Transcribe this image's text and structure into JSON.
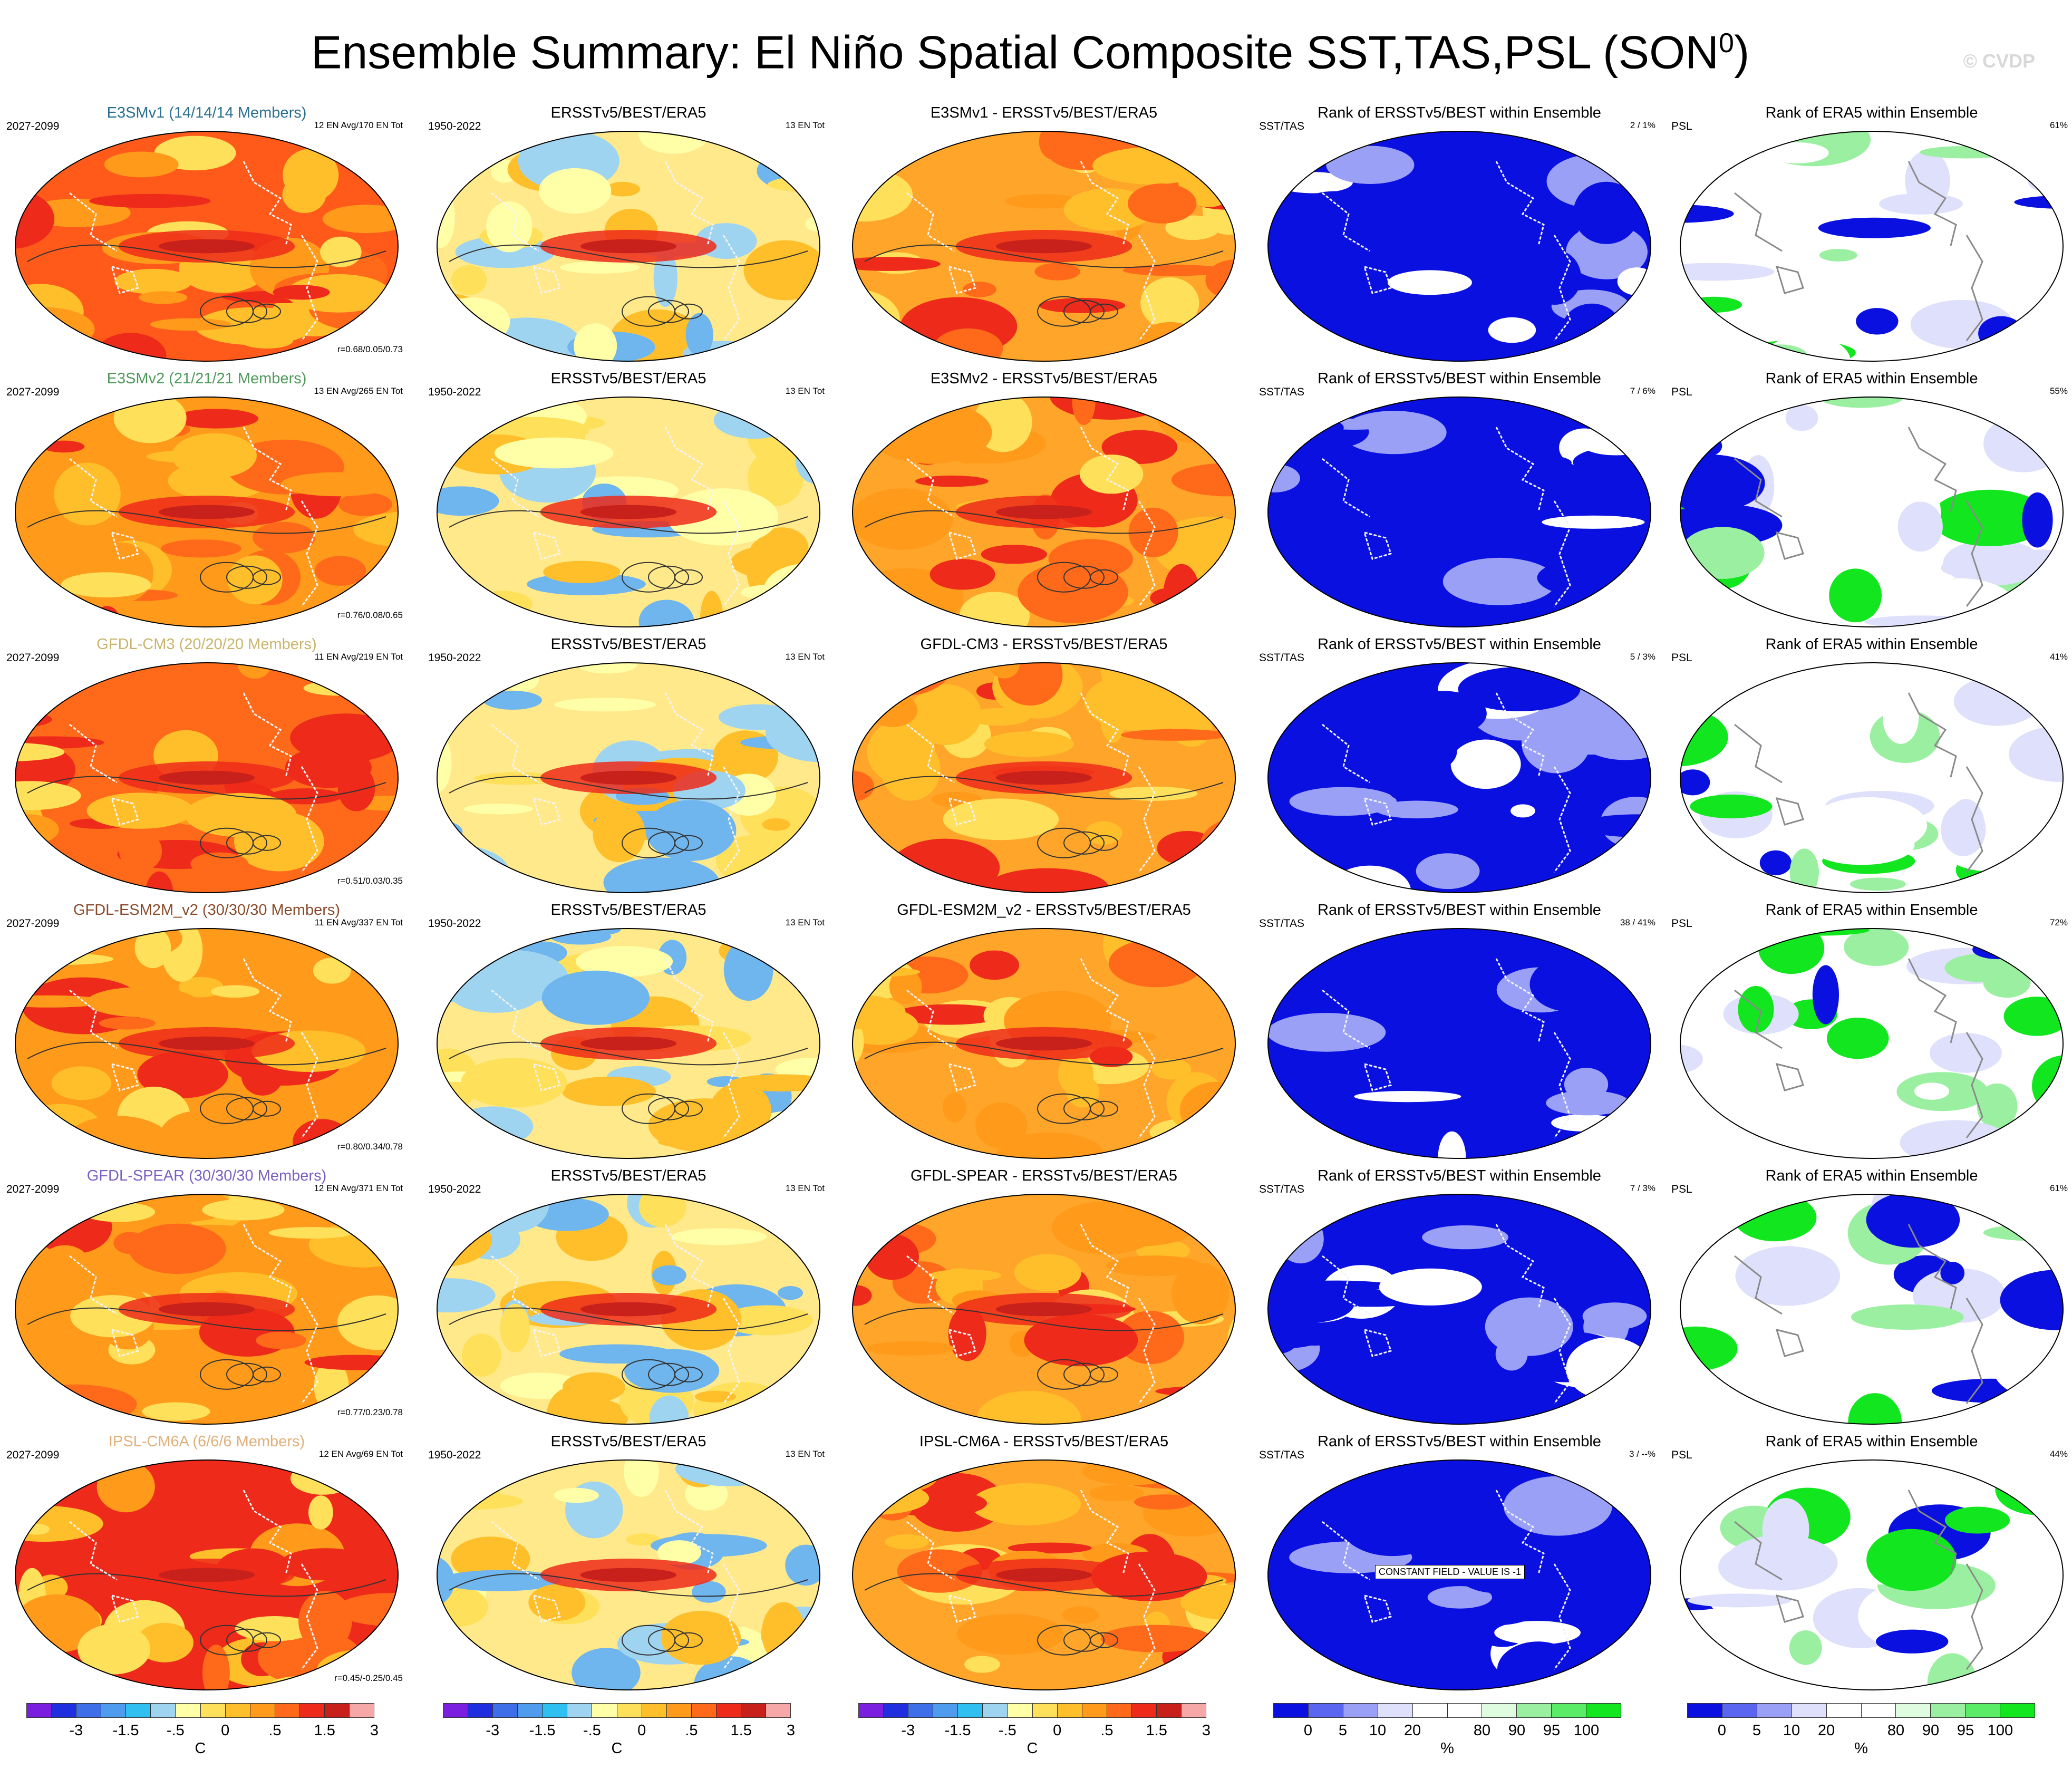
{
  "title": {
    "main": "Ensemble Summary: El Niño Spatial Composite SST,TAS,PSL (SON",
    "superscript": "0",
    "close": ")"
  },
  "watermark": "© CVDP",
  "rows": [
    {
      "model_title": "E3SMv1 (14/14/14 Members)",
      "model_color": "#2a6f8f",
      "period": "2027-2099",
      "ens": "12 EN Avg/170 EN Tot",
      "r": "r=0.68/0.05/0.73",
      "obs_title": "ERSSTv5/BEST/ERA5",
      "obs_period": "1950-2022",
      "obs_tot": "13 EN Tot",
      "diff_title": "E3SMv1 - ERSSTv5/BEST/ERA5",
      "rank_sst_title": "Rank of ERSSTv5/BEST within Ensemble",
      "rank_sst_label": "SST/TAS",
      "rank_sst_value": "2 /  1%",
      "rank_psl_title": "Rank of ERA5 within Ensemble",
      "rank_psl_label": "PSL",
      "rank_psl_value": "61%"
    },
    {
      "model_title": "E3SMv2 (21/21/21 Members)",
      "model_color": "#4f9a5b",
      "period": "2027-2099",
      "ens": "13 EN Avg/265 EN Tot",
      "r": "r=0.76/0.08/0.65",
      "obs_title": "ERSSTv5/BEST/ERA5",
      "obs_period": "1950-2022",
      "obs_tot": "13 EN Tot",
      "diff_title": "E3SMv2 - ERSSTv5/BEST/ERA5",
      "rank_sst_title": "Rank of ERSSTv5/BEST within Ensemble",
      "rank_sst_label": "SST/TAS",
      "rank_sst_value": "7 /  6%",
      "rank_psl_title": "Rank of ERA5 within Ensemble",
      "rank_psl_label": "PSL",
      "rank_psl_value": "55%"
    },
    {
      "model_title": "GFDL-CM3 (20/20/20 Members)",
      "model_color": "#c8b46a",
      "period": "2027-2099",
      "ens": "11 EN Avg/219 EN Tot",
      "r": "r=0.51/0.03/0.35",
      "obs_title": "ERSSTv5/BEST/ERA5",
      "obs_period": "1950-2022",
      "obs_tot": "13 EN Tot",
      "diff_title": "GFDL-CM3 - ERSSTv5/BEST/ERA5",
      "rank_sst_title": "Rank of ERSSTv5/BEST within Ensemble",
      "rank_sst_label": "SST/TAS",
      "rank_sst_value": "5 /  3%",
      "rank_psl_title": "Rank of ERA5 within Ensemble",
      "rank_psl_label": "PSL",
      "rank_psl_value": "41%"
    },
    {
      "model_title": "GFDL-ESM2M_v2 (30/30/30 Members)",
      "model_color": "#8a4a2a",
      "period": "2027-2099",
      "ens": "11 EN Avg/337 EN Tot",
      "r": "r=0.80/0.34/0.78",
      "obs_title": "ERSSTv5/BEST/ERA5",
      "obs_period": "1950-2022",
      "obs_tot": "13 EN Tot",
      "diff_title": "GFDL-ESM2M_v2 - ERSSTv5/BEST/ERA5",
      "rank_sst_title": "Rank of ERSSTv5/BEST within Ensemble",
      "rank_sst_label": "SST/TAS",
      "rank_sst_value": "38 /  41%",
      "rank_psl_title": "Rank of ERA5 within Ensemble",
      "rank_psl_label": "PSL",
      "rank_psl_value": "72%"
    },
    {
      "model_title": "GFDL-SPEAR (30/30/30 Members)",
      "model_color": "#7a5fc0",
      "period": "2027-2099",
      "ens": "12 EN Avg/371 EN Tot",
      "r": "r=0.77/0.23/0.78",
      "obs_title": "ERSSTv5/BEST/ERA5",
      "obs_period": "1950-2022",
      "obs_tot": "13 EN Tot",
      "diff_title": "GFDL-SPEAR - ERSSTv5/BEST/ERA5",
      "rank_sst_title": "Rank of ERSSTv5/BEST within Ensemble",
      "rank_sst_label": "SST/TAS",
      "rank_sst_value": "7 /  3%",
      "rank_psl_title": "Rank of ERA5 within Ensemble",
      "rank_psl_label": "PSL",
      "rank_psl_value": "61%"
    },
    {
      "model_title": "IPSL-CM6A (6/6/6 Members)",
      "model_color": "#e0b07a",
      "period": "2027-2099",
      "ens": "12 EN Avg/69 EN Tot",
      "r": "r=0.45/-0.25/0.45",
      "obs_title": "ERSSTv5/BEST/ERA5",
      "obs_period": "1950-2022",
      "obs_tot": "13 EN Tot",
      "diff_title": "IPSL-CM6A - ERSSTv5/BEST/ERA5",
      "rank_sst_title": "Rank of ERSSTv5/BEST within Ensemble",
      "rank_sst_label": "SST/TAS",
      "rank_sst_value": "3 / --%",
      "rank_psl_title": "Rank of ERA5 within Ensemble",
      "rank_psl_label": "PSL",
      "rank_psl_value": "44%",
      "constant_field": "CONSTANT FIELD - VALUE IS -1"
    }
  ],
  "temp_colorbar": {
    "colors": [
      "#7a1fe0",
      "#1f2fe0",
      "#3f6fe8",
      "#4f9bee",
      "#2fbff0",
      "#9fd4f0",
      "#ffffa8",
      "#ffe05a",
      "#ffbf2a",
      "#ff9a1a",
      "#ff6a1a",
      "#ee2a1a",
      "#c8201a",
      "#f6a8a8"
    ],
    "ticks": [
      "-3",
      "-1.5",
      "-.5",
      "0",
      ".5",
      "1.5",
      "3"
    ],
    "unit": "C"
  },
  "rank_colorbar": {
    "colors": [
      "#0a10e0",
      "#5a66f0",
      "#9aa0f6",
      "#dfe0fb",
      "#ffffff",
      "#ffffff",
      "#dffbe0",
      "#9af0a0",
      "#5aec66",
      "#12e61f"
    ],
    "ticks": [
      "0",
      "5",
      "10",
      "20",
      "80",
      "90",
      "95",
      "100"
    ],
    "unit": "%"
  }
}
